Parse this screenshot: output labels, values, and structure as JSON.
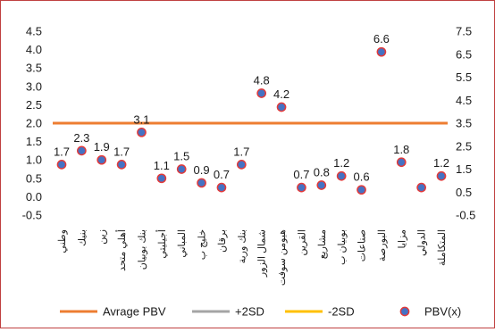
{
  "chart_data": {
    "type": "scatter",
    "title": "",
    "xlabel": "",
    "ylabel": "",
    "categories": [
      "وطني",
      "بنيك",
      "زين",
      "أهلي متحد",
      "بنك بوبيان",
      "أجيليتي",
      "المباني",
      "خليج ب",
      "برقان",
      "بنك وربة",
      "شمال الزور",
      "هيومن سوفت",
      "القرين",
      "مشاريع",
      "بوبيان ب",
      "صناعات",
      "البورصة",
      "مزايا",
      "الدولي",
      "المتكاملة"
    ],
    "y_left": {
      "ticks": [
        "-0.5",
        "0.0",
        "0.5",
        "1.0",
        "1.5",
        "2.0",
        "2.5",
        "3.0",
        "3.5",
        "4.0",
        "4.5"
      ],
      "ylim": [
        -0.5,
        4.5
      ]
    },
    "y_right": {
      "ticks": [
        "-0.5",
        "0.5",
        "1.5",
        "2.5",
        "3.5",
        "4.5",
        "5.5",
        "6.5",
        "7.5"
      ],
      "ylim": [
        -0.5,
        7.5
      ]
    },
    "series": [
      {
        "name": "Avrage PBV",
        "type": "line",
        "axis": "right",
        "color": "#ed7d31",
        "value": 3.5
      },
      {
        "name": "+2SD",
        "type": "line",
        "axis": "right",
        "color": "#a5a5a5",
        "value": null
      },
      {
        "name": "-2SD",
        "type": "line",
        "axis": "right",
        "color": "#ffc000",
        "value": null
      },
      {
        "name": "PBV(x)",
        "type": "scatter",
        "axis": "right",
        "color": "#4472c4",
        "edge_color": "#e23a3a",
        "values": [
          1.7,
          2.3,
          1.9,
          1.7,
          3.1,
          1.1,
          1.5,
          0.9,
          0.7,
          1.7,
          4.8,
          4.2,
          0.7,
          0.8,
          1.2,
          0.6,
          6.6,
          1.8,
          0.7,
          1.2
        ],
        "labels": [
          "1.7",
          "2.3",
          "1.9",
          "1.7",
          "3.1",
          "1.1",
          "1.5",
          "0.9",
          "0.7",
          "1.7",
          "4.8",
          "4.2",
          "0.7",
          "0.8",
          "1.2",
          "0.6",
          "6.6",
          "1.8",
          "0.7",
          "1.2"
        ],
        "label_mask": [
          true,
          true,
          true,
          true,
          true,
          true,
          true,
          true,
          true,
          true,
          true,
          true,
          true,
          true,
          true,
          true,
          true,
          true,
          false,
          true
        ]
      }
    ],
    "grid": false,
    "legend": "bottom"
  }
}
